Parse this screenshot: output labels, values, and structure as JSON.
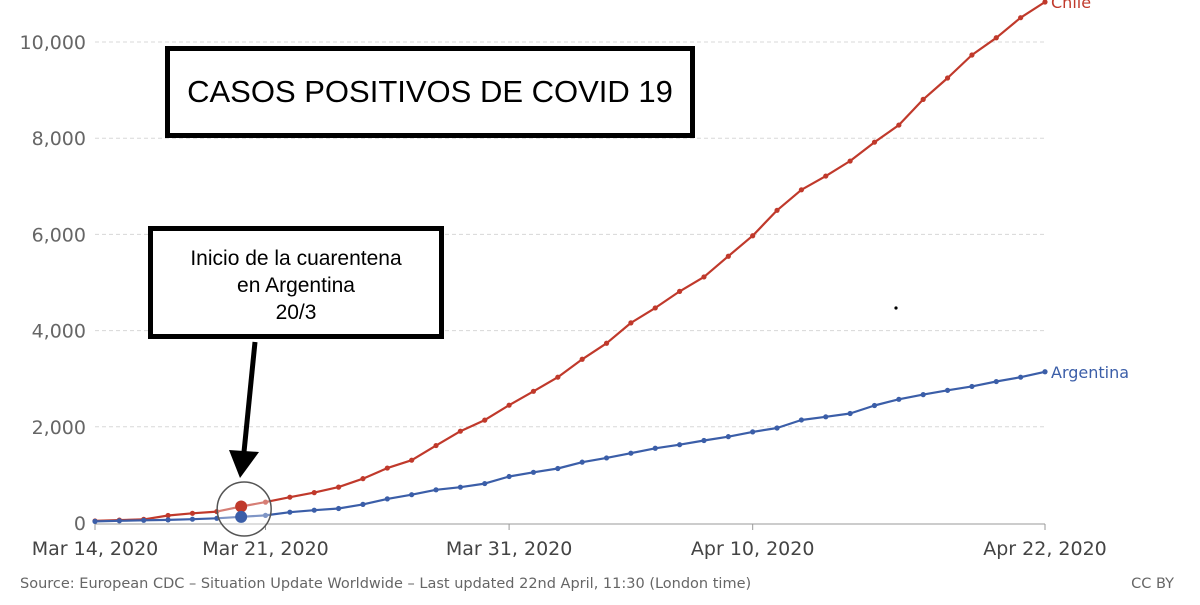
{
  "chart_data": {
    "type": "line",
    "title": "CASOS POSITIVOS DE COVID 19",
    "annotation": {
      "lines": [
        "Inicio de la cuarentena",
        "en Argentina",
        "20/3"
      ]
    },
    "x_ticks": [
      "Mar 14, 2020",
      "Mar 21, 2020",
      "Mar 31, 2020",
      "Apr 10, 2020",
      "Apr 22, 2020"
    ],
    "y_ticks": [
      "0",
      "2,000",
      "4,000",
      "6,000",
      "8,000",
      "10,000"
    ],
    "ylim": [
      0,
      10500
    ],
    "xlim": [
      "2020-03-14",
      "2020-04-22"
    ],
    "grid": true,
    "x": [
      "2020-03-14",
      "2020-03-15",
      "2020-03-16",
      "2020-03-17",
      "2020-03-18",
      "2020-03-19",
      "2020-03-20",
      "2020-03-21",
      "2020-03-22",
      "2020-03-23",
      "2020-03-24",
      "2020-03-25",
      "2020-03-26",
      "2020-03-27",
      "2020-03-28",
      "2020-03-29",
      "2020-03-30",
      "2020-03-31",
      "2020-04-01",
      "2020-04-02",
      "2020-04-03",
      "2020-04-04",
      "2020-04-05",
      "2020-04-06",
      "2020-04-07",
      "2020-04-08",
      "2020-04-09",
      "2020-04-10",
      "2020-04-11",
      "2020-04-12",
      "2020-04-13",
      "2020-04-14",
      "2020-04-15",
      "2020-04-16",
      "2020-04-17",
      "2020-04-18",
      "2020-04-19",
      "2020-04-20",
      "2020-04-21",
      "2020-04-22"
    ],
    "series": [
      {
        "name": "Chile",
        "color": "#c0392b",
        "values": [
          43,
          61,
          75,
          156,
          201,
          238,
          342,
          434,
          537,
          632,
          746,
          922,
          1142,
          1306,
          1610,
          1909,
          2139,
          2449,
          2738,
          3031,
          3404,
          3737,
          4161,
          4471,
          4815,
          5116,
          5546,
          5972,
          6501,
          6927,
          7213,
          7525,
          7917,
          8273,
          8807,
          9252,
          9730,
          10088,
          10505,
          10832
        ]
      },
      {
        "name": "Argentina",
        "color": "#3b5ea8",
        "values": [
          34,
          45,
          56,
          65,
          79,
          97,
          128,
          158,
          225,
          266,
          301,
          387,
          502,
          589,
          690,
          745,
          820,
          966,
          1054,
          1133,
          1265,
          1353,
          1451,
          1554,
          1628,
          1715,
          1795,
          1894,
          1975,
          2142,
          2208,
          2277,
          2443,
          2571,
          2669,
          2758,
          2839,
          2941,
          3031,
          3144
        ]
      }
    ],
    "source": "Source: European CDC – Situation Update Worldwide – Last updated 22nd April, 11:30 (London time)",
    "license": "CC BY"
  }
}
